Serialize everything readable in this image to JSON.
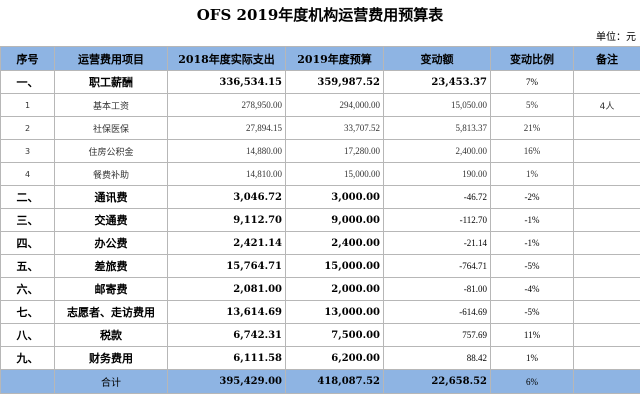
{
  "title": "OFS 2019年度机构运营费用预算表",
  "unit": "单位：元",
  "headers": [
    "序号",
    "运营费用项目",
    "2018年度实际支出",
    "2019年度预算",
    "变动额",
    "变动比例",
    "备注"
  ],
  "colors": {
    "header_fill": "#8eb4e3",
    "grid": "#b7b7b7"
  },
  "rows": [
    {
      "seq": "一、",
      "item": "职工薪酬",
      "actual_2018": "336,534.15",
      "budget_2019": "359,987.52",
      "change": "23,453.37",
      "ratio": "7%",
      "note": ""
    },
    {
      "seq": "1",
      "item": "基本工资",
      "actual_2018": "278,950.00",
      "budget_2019": "294,000.00",
      "change": "15,050.00",
      "ratio": "5%",
      "note": "4人"
    },
    {
      "seq": "2",
      "item": "社保医保",
      "actual_2018": "27,894.15",
      "budget_2019": "33,707.52",
      "change": "5,813.37",
      "ratio": "21%",
      "note": ""
    },
    {
      "seq": "3",
      "item": "住房公积金",
      "actual_2018": "14,880.00",
      "budget_2019": "17,280.00",
      "change": "2,400.00",
      "ratio": "16%",
      "note": ""
    },
    {
      "seq": "4",
      "item": "餐费补助",
      "actual_2018": "14,810.00",
      "budget_2019": "15,000.00",
      "change": "190.00",
      "ratio": "1%",
      "note": ""
    },
    {
      "seq": "二、",
      "item": "通讯费",
      "actual_2018": "3,046.72",
      "budget_2019": "3,000.00",
      "change": "-46.72",
      "ratio": "-2%",
      "note": ""
    },
    {
      "seq": "三、",
      "item": "交通费",
      "actual_2018": "9,112.70",
      "budget_2019": "9,000.00",
      "change": "-112.70",
      "ratio": "-1%",
      "note": ""
    },
    {
      "seq": "四、",
      "item": "办公费",
      "actual_2018": "2,421.14",
      "budget_2019": "2,400.00",
      "change": "-21.14",
      "ratio": "-1%",
      "note": ""
    },
    {
      "seq": "五、",
      "item": "差旅费",
      "actual_2018": "15,764.71",
      "budget_2019": "15,000.00",
      "change": "-764.71",
      "ratio": "-5%",
      "note": ""
    },
    {
      "seq": "六、",
      "item": "邮寄费",
      "actual_2018": "2,081.00",
      "budget_2019": "2,000.00",
      "change": "-81.00",
      "ratio": "-4%",
      "note": ""
    },
    {
      "seq": "七、",
      "item": "志愿者、走访费用",
      "actual_2018": "13,614.69",
      "budget_2019": "13,000.00",
      "change": "-614.69",
      "ratio": "-5%",
      "note": ""
    },
    {
      "seq": "八、",
      "item": "税款",
      "actual_2018": "6,742.31",
      "budget_2019": "7,500.00",
      "change": "757.69",
      "ratio": "11%",
      "note": ""
    },
    {
      "seq": "九、",
      "item": "财务费用",
      "actual_2018": "6,111.58",
      "budget_2019": "6,200.00",
      "change": "88.42",
      "ratio": "1%",
      "note": ""
    }
  ],
  "total": {
    "label": "合计",
    "actual_2018": "395,429.00",
    "budget_2019": "418,087.52",
    "change": "22,658.52",
    "ratio": "6%"
  }
}
